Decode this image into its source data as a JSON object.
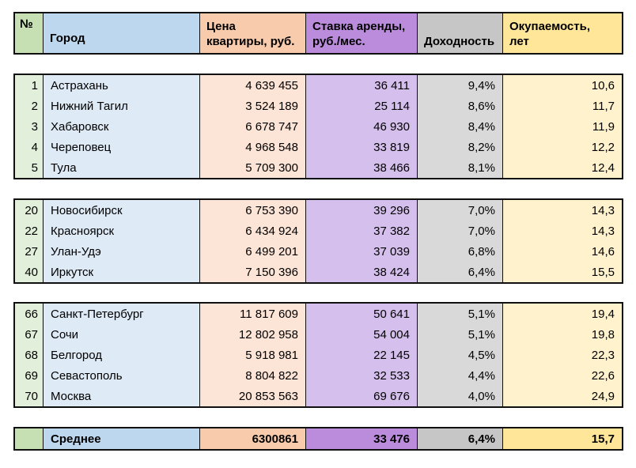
{
  "page": {
    "background": "#FFFFFF"
  },
  "chart_data": {
    "type": "table",
    "columns": [
      "№",
      "Город",
      "Цена\nквартиры, руб.",
      "Ставка аренды,\nруб./мес.",
      "Доходность",
      "Окупаемость,\nлет"
    ],
    "blocks": [
      {
        "rows": [
          [
            "1",
            "Астрахань",
            "4 639 455",
            "36 411",
            "9,4%",
            "10,6"
          ],
          [
            "2",
            "Нижний Тагил",
            "3 524 189",
            "25 114",
            "8,6%",
            "11,7"
          ],
          [
            "3",
            "Хабаровск",
            "6 678 747",
            "46 930",
            "8,4%",
            "11,9"
          ],
          [
            "4",
            "Череповец",
            "4 968 548",
            "33 819",
            "8,2%",
            "12,2"
          ],
          [
            "5",
            "Тула",
            "5 709 300",
            "38 466",
            "8,1%",
            "12,4"
          ]
        ]
      },
      {
        "rows": [
          [
            "20",
            "Новосибирск",
            "6 753 390",
            "39 296",
            "7,0%",
            "14,3"
          ],
          [
            "22",
            "Красноярск",
            "6 434 924",
            "37 382",
            "7,0%",
            "14,3"
          ],
          [
            "27",
            "Улан-Удэ",
            "6 499 201",
            "37 039",
            "6,8%",
            "14,6"
          ],
          [
            "40",
            "Иркутск",
            "7 150 396",
            "38 424",
            "6,4%",
            "15,5"
          ]
        ]
      },
      {
        "rows": [
          [
            "66",
            "Санкт-Петербург",
            "11 817 609",
            "50 641",
            "5,1%",
            "19,4"
          ],
          [
            "67",
            "Сочи",
            "12 802 958",
            "54 004",
            "5,1%",
            "19,8"
          ],
          [
            "68",
            "Белгород",
            "5 918 981",
            "22 145",
            "4,5%",
            "22,3"
          ],
          [
            "69",
            "Севастополь",
            "8 804 822",
            "32 533",
            "4,4%",
            "22,6"
          ],
          [
            "70",
            "Москва",
            "20 853 563",
            "69 676",
            "4,0%",
            "24,9"
          ]
        ]
      }
    ],
    "summary": [
      "",
      "Среднее",
      "6300861",
      "33 476",
      "6,4%",
      "15,7"
    ]
  },
  "colors": {
    "border": "#101010",
    "header": {
      "number": "#C6E0B4",
      "city": "#BDD7EE",
      "price": "#F8CBAD",
      "rent_rate": "#BB8CDC",
      "yield": "#C6C6C6",
      "payback": "#FFE699"
    },
    "data": {
      "number": "#E2EFDA",
      "city": "#DEEAF6",
      "price": "#FCE4D6",
      "rent_rate": "#D5BFEC",
      "yield": "#D9D9D9",
      "payback": "#FFF2CC"
    }
  }
}
